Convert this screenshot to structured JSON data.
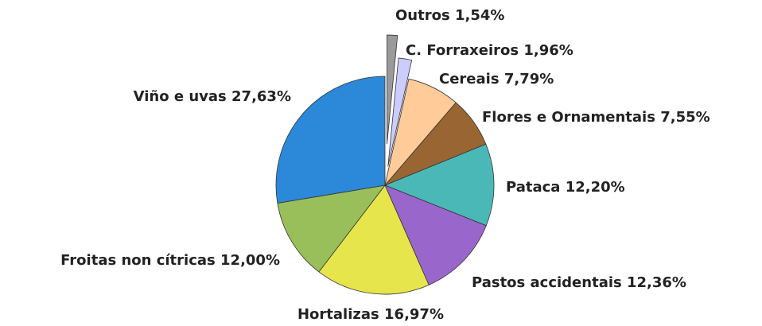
{
  "chart_data": {
    "type": "pie",
    "categories": [
      "Outros",
      "C. Forraxeiros",
      "Cereais",
      "Flores e Ornamentais",
      "Pataca",
      "Pastos accidentais",
      "Hortalizas",
      "Froitas non cítricas",
      "Viño e uvas"
    ],
    "values": [
      1.54,
      1.96,
      7.79,
      7.55,
      12.2,
      12.36,
      16.97,
      12.0,
      27.63
    ],
    "value_labels": [
      "1,54%",
      "1,96%",
      "7,79%",
      "7,55%",
      "12,20%",
      "12,36%",
      "16,97%",
      "12,00%",
      "27,63%"
    ],
    "colors": [
      "#9a9a9a",
      "#ccccff",
      "#ffcc99",
      "#996633",
      "#4bb8b8",
      "#9966cc",
      "#e6e64c",
      "#99bf5a",
      "#2c88d8"
    ],
    "exploded": [
      true,
      true,
      false,
      false,
      false,
      false,
      false,
      false,
      false
    ]
  }
}
